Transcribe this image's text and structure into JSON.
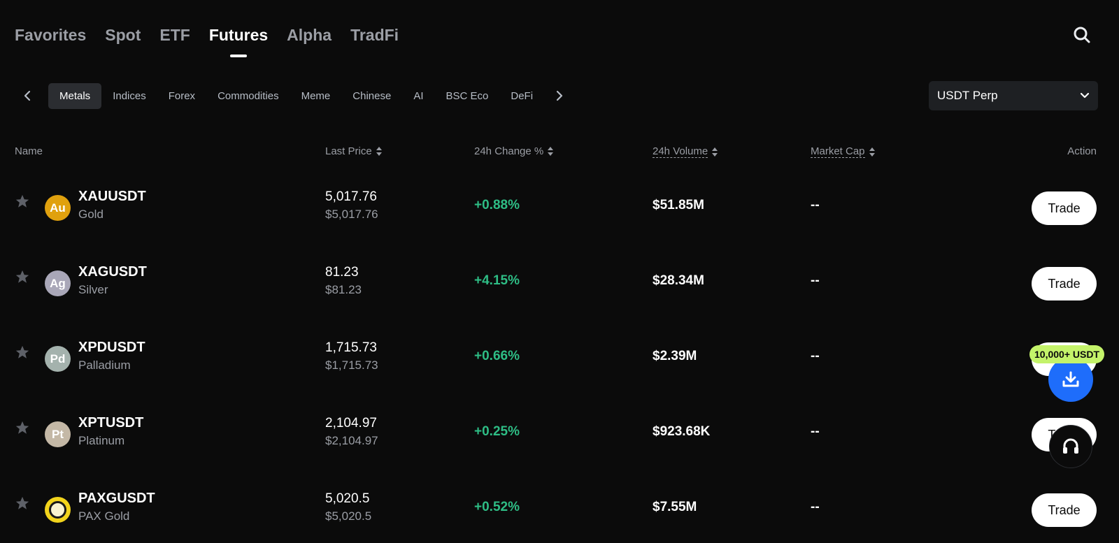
{
  "top_tabs": [
    {
      "label": "Favorites",
      "active": false
    },
    {
      "label": "Spot",
      "active": false
    },
    {
      "label": "ETF",
      "active": false
    },
    {
      "label": "Futures",
      "active": true
    },
    {
      "label": "Alpha",
      "active": false
    },
    {
      "label": "TradFi",
      "active": false
    }
  ],
  "categories": [
    {
      "label": "Metals",
      "active": true
    },
    {
      "label": "Indices",
      "active": false
    },
    {
      "label": "Forex",
      "active": false
    },
    {
      "label": "Commodities",
      "active": false
    },
    {
      "label": "Meme",
      "active": false
    },
    {
      "label": "Chinese",
      "active": false
    },
    {
      "label": "AI",
      "active": false
    },
    {
      "label": "BSC Eco",
      "active": false
    },
    {
      "label": "DeFi",
      "active": false
    }
  ],
  "contract_select": {
    "value": "USDT Perp"
  },
  "table": {
    "headers": {
      "name": "Name",
      "last_price": "Last Price",
      "change": "24h Change %",
      "volume": "24h Volume",
      "market_cap": "Market Cap",
      "action": "Action"
    },
    "rows": [
      {
        "symbol": "XAUUSDT",
        "name": "Gold",
        "coin_label": "Au",
        "coin_color": "#e0a10e",
        "price": "5,017.76",
        "price_usd": "$5,017.76",
        "change": "+0.88%",
        "volume": "$51.85M",
        "market_cap": "--",
        "action": "Trade"
      },
      {
        "symbol": "XAGUSDT",
        "name": "Silver",
        "coin_label": "Ag",
        "coin_color": "#a9a7b8",
        "price": "81.23",
        "price_usd": "$81.23",
        "change": "+4.15%",
        "volume": "$28.34M",
        "market_cap": "--",
        "action": "Trade"
      },
      {
        "symbol": "XPDUSDT",
        "name": "Palladium",
        "coin_label": "Pd",
        "coin_color": "#a4b2ad",
        "price": "1,715.73",
        "price_usd": "$1,715.73",
        "change": "+0.66%",
        "volume": "$2.39M",
        "market_cap": "--",
        "action": "Trade"
      },
      {
        "symbol": "XPTUSDT",
        "name": "Platinum",
        "coin_label": "Pt",
        "coin_color": "#c4b8a6",
        "price": "2,104.97",
        "price_usd": "$2,104.97",
        "change": "+0.25%",
        "volume": "$923.68K",
        "market_cap": "--",
        "action": "Trade"
      },
      {
        "symbol": "PAXGUSDT",
        "name": "PAX Gold",
        "coin_label": "",
        "coin_color": "#f2d41c",
        "price": "5,020.5",
        "price_usd": "$5,020.5",
        "change": "+0.52%",
        "volume": "$7.55M",
        "market_cap": "--",
        "action": "Trade"
      }
    ]
  },
  "promo_badge": "10,000+ USDT",
  "colors": {
    "positive": "#2ebd85",
    "fab_blue": "#1e6dfb",
    "badge_green": "#c4f36a"
  }
}
